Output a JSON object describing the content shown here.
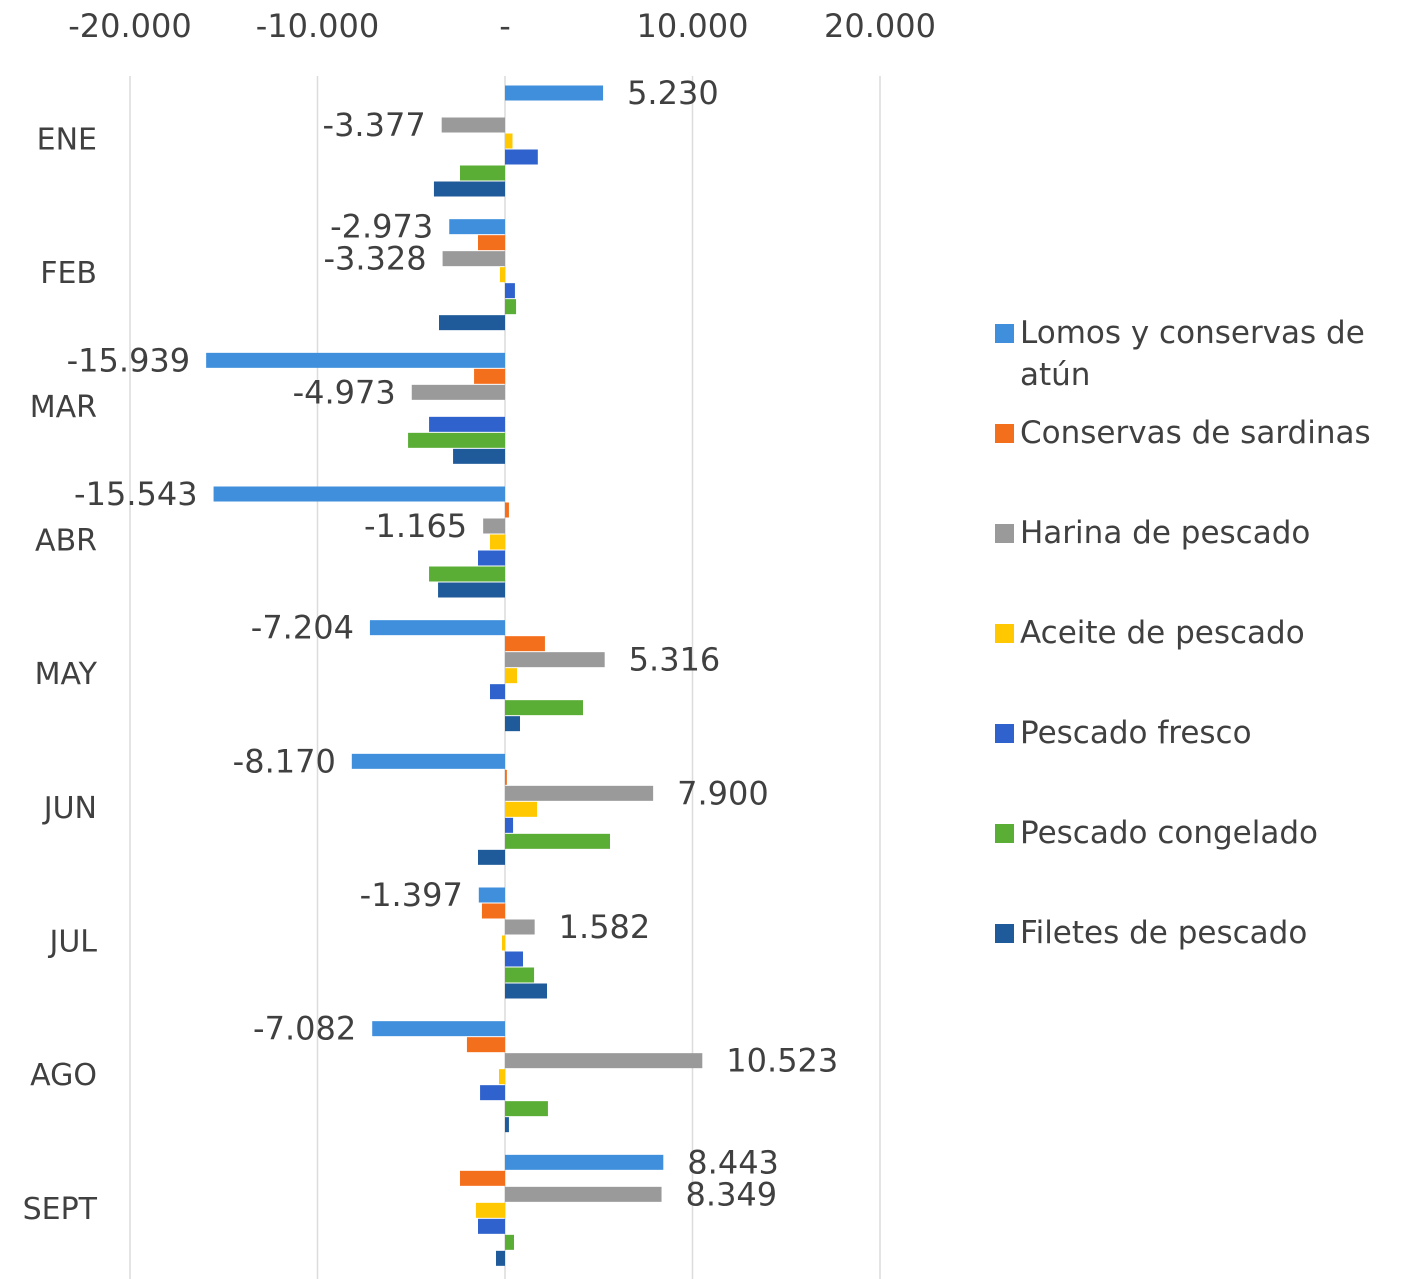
{
  "chart_data": {
    "type": "hbar",
    "categories": [
      "ENE",
      "FEB",
      "MAR",
      "ABR",
      "MAY",
      "JUN",
      "JUL",
      "AGO",
      "SEPT"
    ],
    "series": [
      {
        "name": "Lomos y conservas de atún",
        "color": "#3f8fdc",
        "values": [
          5230,
          -2973,
          -15939,
          -15543,
          -7204,
          -8170,
          -1397,
          -7082,
          8443
        ],
        "value_labels": [
          "5.230",
          "-2.973",
          "-15.939",
          "-15.543",
          "-7.204",
          "-8.170",
          "-1.397",
          "-7.082",
          "8.443"
        ]
      },
      {
        "name": "Conservas de sardinas",
        "color": "#f46f1c",
        "values": [
          0,
          -1440,
          -1650,
          210,
          2130,
          100,
          -1230,
          -2030,
          -2400
        ]
      },
      {
        "name": "Harina de pescado",
        "color": "#9a9a9a",
        "values": [
          -3377,
          -3328,
          -4973,
          -1165,
          5316,
          7900,
          1582,
          10523,
          8349
        ],
        "value_labels": [
          "-3.377",
          "-3.328",
          "-4.973",
          "-1.165",
          "5.316",
          "7.900",
          "1.582",
          "10.523",
          "8.349"
        ]
      },
      {
        "name": "Aceite de pescado",
        "color": "#ffc800",
        "values": [
          400,
          -270,
          0,
          -800,
          640,
          1710,
          -160,
          -320,
          -1550
        ]
      },
      {
        "name": "Pescado fresco",
        "color": "#2f62cc",
        "values": [
          1750,
          530,
          -4050,
          -1440,
          -800,
          430,
          960,
          -1330,
          -1440
        ]
      },
      {
        "name": "Pescado congelado",
        "color": "#5aad35",
        "values": [
          -2400,
          590,
          -5170,
          -4050,
          4160,
          5600,
          1550,
          2290,
          480
        ]
      },
      {
        "name": "Filetes de pescado",
        "color": "#1f5a9a",
        "values": [
          -3790,
          -3520,
          -2770,
          -3570,
          800,
          -1440,
          2240,
          210,
          -480
        ]
      }
    ],
    "xlim": [
      -20000,
      20000
    ],
    "xticks": [
      {
        "value": -20000,
        "label": "-20.000"
      },
      {
        "value": -10000,
        "label": "-10.000"
      },
      {
        "value": 0,
        "label": "-"
      },
      {
        "value": 10000,
        "label": "10.000"
      },
      {
        "value": 20000,
        "label": "20.000"
      }
    ],
    "grid": true,
    "legend": "right"
  }
}
